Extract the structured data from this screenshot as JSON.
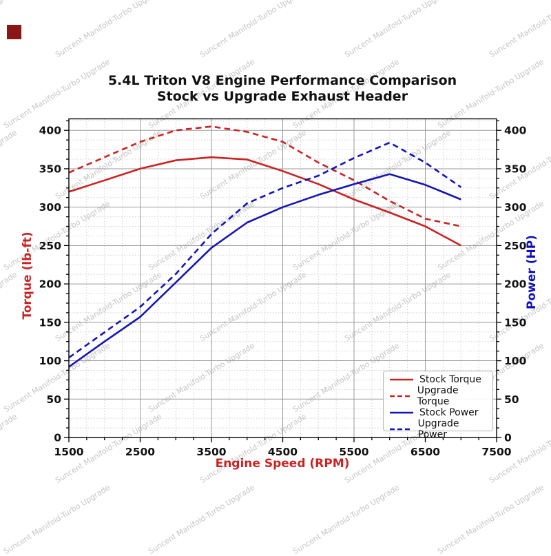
{
  "badge": {
    "color": "#8b1616"
  },
  "watermark": {
    "text": "Suncent Manifold-Turbo Upgrade"
  },
  "title": {
    "line1": "5.4L Triton V8 Engine Performance Comparison",
    "line2": "Stock vs Upgrade Exhaust Header"
  },
  "chart_data": {
    "type": "line",
    "title": "5.4L Triton V8 Engine Performance Comparison — Stock vs Upgrade Exhaust Header",
    "xlabel": "Engine Speed (RPM)",
    "ylabel_left": "Torque (lb-ft)",
    "ylabel_right": "Power (HP)",
    "xlim": [
      1500,
      7500
    ],
    "ylim": [
      0,
      415
    ],
    "x_major_ticks": [
      1500,
      2500,
      3500,
      4500,
      5500,
      6500,
      7500
    ],
    "x_minor_step": 250,
    "y_major_ticks": [
      0,
      50,
      100,
      150,
      200,
      250,
      300,
      350,
      400
    ],
    "y_minor_step": 12.5,
    "grid": "both",
    "legend_position": "lower right",
    "x": [
      1500,
      2000,
      2500,
      3000,
      3500,
      4000,
      4500,
      5000,
      5500,
      6000,
      6500,
      7000
    ],
    "series": [
      {
        "name": "Stock Torque",
        "axis": "left",
        "style": "solid",
        "color": "#cc2222",
        "values": [
          320,
          335,
          350,
          361,
          365,
          362,
          347,
          330,
          310,
          293,
          275,
          250
        ]
      },
      {
        "name": "Upgrade Torque",
        "axis": "left",
        "style": "dashed",
        "color": "#cc2222",
        "values": [
          345,
          365,
          385,
          400,
          405,
          398,
          385,
          358,
          335,
          308,
          285,
          275
        ]
      },
      {
        "name": "Stock Power",
        "axis": "right",
        "style": "solid",
        "color": "#1414b8",
        "values": [
          92,
          125,
          157,
          202,
          247,
          280,
          300,
          316,
          330,
          343,
          329,
          310
        ]
      },
      {
        "name": "Upgrade Power",
        "axis": "right",
        "style": "dashed",
        "color": "#1414b8",
        "values": [
          104,
          137,
          170,
          213,
          265,
          305,
          325,
          341,
          364,
          384,
          358,
          326
        ]
      }
    ],
    "accent_colors": {
      "torque": "#cc2222",
      "power": "#1414b8",
      "grid_major": "#9a9a9a",
      "grid_minor": "#cfcfcf"
    }
  }
}
